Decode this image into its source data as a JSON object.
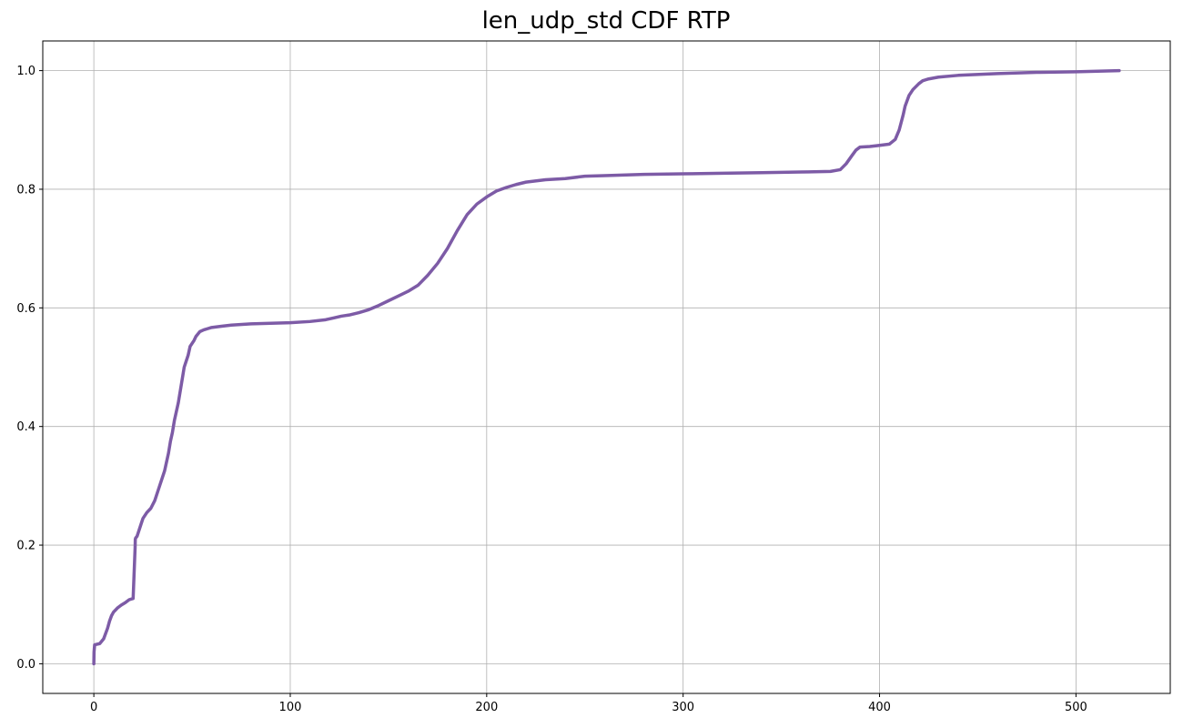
{
  "chart_data": {
    "type": "line",
    "title": "len_udp_std CDF RTP",
    "xlabel": "",
    "ylabel": "",
    "xlim": [
      -26,
      548
    ],
    "ylim": [
      -0.05,
      1.05
    ],
    "grid": true,
    "x_ticks": [
      {
        "value": 0,
        "label": "0"
      },
      {
        "value": 100,
        "label": "100"
      },
      {
        "value": 200,
        "label": "200"
      },
      {
        "value": 300,
        "label": "300"
      },
      {
        "value": 400,
        "label": "400"
      },
      {
        "value": 500,
        "label": "500"
      }
    ],
    "y_ticks": [
      {
        "value": 0.0,
        "label": "0.0"
      },
      {
        "value": 0.2,
        "label": "0.2"
      },
      {
        "value": 0.4,
        "label": "0.4"
      },
      {
        "value": 0.6,
        "label": "0.6"
      },
      {
        "value": 0.8,
        "label": "0.8"
      },
      {
        "value": 1.0,
        "label": "1.0"
      }
    ],
    "series": [
      {
        "color": "#7d5ba6",
        "x": [
          0,
          0.1,
          0.4,
          3,
          5,
          7,
          8,
          9,
          10,
          12,
          14,
          16,
          18,
          20,
          21,
          21.1,
          21.3,
          22,
          24,
          25,
          27,
          29,
          31,
          33,
          35,
          36,
          38,
          39,
          40,
          41,
          42,
          43,
          45,
          46,
          47,
          48,
          49,
          51,
          52,
          54,
          56,
          58,
          60,
          65,
          70,
          80,
          90,
          100,
          110,
          118,
          122,
          126,
          130,
          135,
          140,
          145,
          150,
          155,
          160,
          165,
          170,
          175,
          180,
          185,
          190,
          195,
          200,
          205,
          210,
          215,
          220,
          230,
          240,
          250,
          260,
          280,
          300,
          320,
          340,
          360,
          375,
          380,
          383,
          386,
          388,
          390,
          395,
          400,
          405,
          408,
          410,
          412,
          413,
          415,
          417,
          420,
          422,
          425,
          430,
          440,
          460,
          480,
          500,
          522
        ],
        "y": [
          0,
          0.02,
          0.032,
          0.034,
          0.042,
          0.06,
          0.072,
          0.081,
          0.087,
          0.094,
          0.099,
          0.103,
          0.108,
          0.11,
          0.195,
          0.21,
          0.212,
          0.215,
          0.235,
          0.245,
          0.255,
          0.262,
          0.275,
          0.295,
          0.315,
          0.325,
          0.355,
          0.375,
          0.39,
          0.41,
          0.425,
          0.44,
          0.48,
          0.5,
          0.51,
          0.52,
          0.535,
          0.545,
          0.552,
          0.56,
          0.563,
          0.565,
          0.567,
          0.569,
          0.571,
          0.573,
          0.574,
          0.575,
          0.577,
          0.58,
          0.583,
          0.586,
          0.588,
          0.592,
          0.597,
          0.604,
          0.612,
          0.62,
          0.628,
          0.638,
          0.655,
          0.675,
          0.7,
          0.73,
          0.757,
          0.775,
          0.787,
          0.797,
          0.803,
          0.808,
          0.812,
          0.816,
          0.818,
          0.822,
          0.823,
          0.825,
          0.826,
          0.827,
          0.828,
          0.829,
          0.83,
          0.833,
          0.843,
          0.857,
          0.866,
          0.871,
          0.872,
          0.874,
          0.876,
          0.884,
          0.9,
          0.925,
          0.94,
          0.958,
          0.968,
          0.978,
          0.983,
          0.986,
          0.989,
          0.992,
          0.995,
          0.997,
          0.998,
          1.0
        ]
      }
    ]
  }
}
